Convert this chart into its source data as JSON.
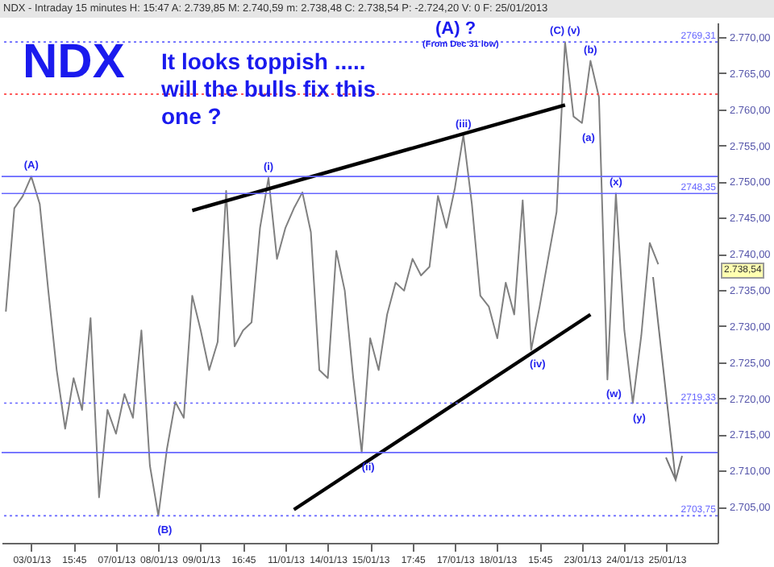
{
  "chart_data": {
    "type": "line",
    "title": "NDX",
    "subtitle": "It looks toppish ..... will the bulls fix this one ?",
    "categories": [
      null,
      null,
      null,
      "03/01/13",
      null,
      null,
      null,
      null,
      "15:45",
      null,
      null,
      null,
      null,
      "07/01/13",
      null,
      null,
      null,
      null,
      "08/01/13",
      null,
      null,
      null,
      null,
      "09/01/13",
      null,
      null,
      null,
      null,
      "16:45",
      null,
      null,
      null,
      null,
      "11/01/13",
      null,
      null,
      null,
      null,
      "14/01/13",
      null,
      null,
      null,
      null,
      "15/01/13",
      null,
      null,
      null,
      null,
      "17:45",
      null,
      null,
      null,
      null,
      "17/01/13",
      null,
      null,
      null,
      null,
      "18/01/13",
      null,
      null,
      null,
      null,
      "15:45",
      null,
      null,
      null,
      null,
      "23/01/13",
      null,
      null,
      null,
      null,
      "24/01/13",
      null,
      null,
      null,
      null,
      "25/01/13"
    ],
    "ylim": [
      2700,
      2772
    ],
    "yticks": [
      {
        "value": 2705,
        "label": "2.705,00"
      },
      {
        "value": 2710,
        "label": "2.710,00"
      },
      {
        "value": 2715,
        "label": "2.715,00"
      },
      {
        "value": 2720,
        "label": "2.720,00"
      },
      {
        "value": 2725,
        "label": "2.725,00"
      },
      {
        "value": 2730,
        "label": "2.730,00"
      },
      {
        "value": 2735,
        "label": "2.735,00"
      },
      {
        "value": 2740,
        "label": "2.740,00"
      },
      {
        "value": 2745,
        "label": "2.745,00"
      },
      {
        "value": 2750,
        "label": "2.750,00"
      },
      {
        "value": 2755,
        "label": "2.755,00"
      },
      {
        "value": 2760,
        "label": "2.760,00"
      },
      {
        "value": 2765,
        "label": "2.765,00"
      },
      {
        "value": 2770,
        "label": "2.770,00"
      }
    ],
    "grid": false,
    "series": [
      {
        "color": "#808080",
        "values": [
          2732.0,
          2746.3,
          2748.0,
          2750.7,
          2746.9,
          2735.0,
          2723.9,
          2715.8,
          2722.8,
          2718.4,
          2731.1,
          2706.3,
          2718.4,
          2715.1,
          2720.6,
          2717.3,
          2729.4,
          2710.7,
          2703.75,
          2712.9,
          2719.5,
          2717.3,
          2734.2,
          2729.4,
          2723.9,
          2727.8,
          2748.7,
          2727.2,
          2729.4,
          2730.5,
          2743.6,
          2750.5,
          2739.3,
          2743.6,
          2746.3,
          2748.5,
          2743.0,
          2723.9,
          2722.8,
          2740.4,
          2734.9,
          2722.8,
          2712.5,
          2728.3,
          2723.9,
          2731.6,
          2736.0,
          2734.9,
          2739.3,
          2737.0,
          2738.2,
          2748.0,
          2743.6,
          2749.1,
          2756.4,
          2746.9,
          2734.2,
          2732.7,
          2728.3,
          2736.0,
          2731.6,
          2747.4,
          2726.7,
          2732.7,
          2739.3,
          2745.8,
          2769.31,
          2759.0,
          2758.1,
          2766.7,
          2761.7,
          2722.6,
          2748.35,
          2729.4,
          2719.33,
          2728.7,
          2741.5,
          2738.54,
          null
        ]
      },
      {
        "type": "line",
        "color": "#000000",
        "values": [
          null,
          null,
          null,
          null,
          null,
          null,
          null,
          null,
          null,
          null,
          null,
          null,
          null,
          null,
          null,
          null,
          null,
          null,
          null,
          null,
          null,
          null,
          2746.0,
          null,
          null,
          null,
          null,
          null,
          null,
          null,
          null,
          null,
          null,
          null,
          null,
          null,
          null,
          null,
          null,
          null,
          null,
          null,
          null,
          null,
          null,
          null,
          null,
          null,
          null,
          null,
          null,
          null,
          null,
          null,
          null,
          null,
          null,
          null,
          null,
          null,
          null,
          null,
          null,
          null,
          null,
          null,
          2760.6,
          null,
          null,
          null,
          null,
          null,
          null,
          null,
          null,
          null,
          null,
          null,
          null
        ]
      },
      {
        "type": "line",
        "color": "#000000",
        "values": [
          null,
          null,
          null,
          null,
          null,
          null,
          null,
          null,
          null,
          null,
          null,
          null,
          null,
          null,
          null,
          null,
          null,
          null,
          null,
          null,
          null,
          null,
          null,
          null,
          null,
          null,
          null,
          null,
          null,
          null,
          null,
          null,
          null,
          null,
          2704.6,
          null,
          null,
          null,
          null,
          null,
          null,
          null,
          null,
          null,
          null,
          null,
          null,
          null,
          null,
          null,
          null,
          null,
          null,
          null,
          null,
          null,
          null,
          null,
          null,
          null,
          null,
          null,
          null,
          null,
          null,
          null,
          null,
          null,
          null,
          2731.6,
          null,
          null,
          null,
          null,
          null,
          null,
          null,
          null,
          null
        ]
      }
    ],
    "ref_lines": [
      {
        "axis": "y",
        "value": 2769.31,
        "label": "2769,31",
        "color": "#6666ff",
        "line_style": "dotted"
      },
      {
        "axis": "y",
        "value": 2748.35,
        "label": "2748,35",
        "color": "#6666ff",
        "line_style": "solid"
      },
      {
        "axis": "y",
        "value": 2719.33,
        "label": "2719,33",
        "color": "#6666ff",
        "line_style": "dotted"
      },
      {
        "axis": "y",
        "value": 2703.75,
        "label": "2703,75",
        "color": "#6666ff",
        "line_style": "dotted"
      },
      {
        "axis": "y",
        "value": 2750.7,
        "label": null,
        "color": "#6666ff",
        "line_style": "solid"
      },
      {
        "axis": "y",
        "value": 2712.5,
        "label": null,
        "color": "#6666ff",
        "line_style": "solid"
      },
      {
        "axis": "y",
        "value": 2762.1,
        "label": null,
        "color": "#ff4444",
        "line_style": "dotted"
      }
    ],
    "annotations": [
      "NDX - Intraday 15 minutes  H: 15:47  A: 2.739,85  M: 2.740,59  m: 2.738,48  C: 2.738,54  P: -2.724,20  V: 0  F: 25/01/2013",
      "(A) ?",
      "(From Dec 31 low)",
      {
        "text": "(A)",
        "y": 2750.7
      },
      {
        "text": "(B)",
        "y": 2703.75
      },
      {
        "text": "(i)",
        "y": 2750.5
      },
      {
        "text": "(ii)",
        "y": 2712.5
      },
      {
        "text": "(iii)",
        "y": 2756.4
      },
      {
        "text": "(iv)",
        "y": 2726.7
      },
      {
        "text": "(C) (v)",
        "y": 2769.31
      },
      {
        "text": "(a)",
        "y": 2758.1
      },
      {
        "text": "(b)",
        "y": 2766.7
      },
      {
        "text": "(w)",
        "y": 2722.6
      },
      {
        "text": "(x)",
        "y": 2748.35
      },
      {
        "text": "(y)",
        "y": 2719.33
      },
      "2.738,54"
    ]
  }
}
